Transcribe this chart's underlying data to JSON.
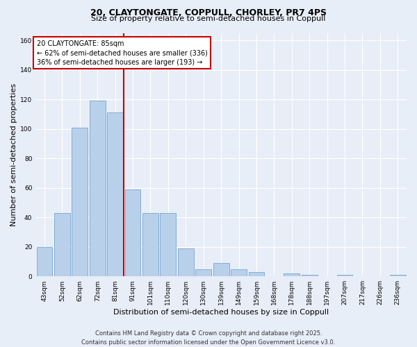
{
  "title_line1": "20, CLAYTONGATE, COPPULL, CHORLEY, PR7 4PS",
  "title_line2": "Size of property relative to semi-detached houses in Coppull",
  "xlabel": "Distribution of semi-detached houses by size in Coppull",
  "ylabel": "Number of semi-detached properties",
  "categories": [
    "43sqm",
    "52sqm",
    "62sqm",
    "72sqm",
    "81sqm",
    "91sqm",
    "101sqm",
    "110sqm",
    "120sqm",
    "130sqm",
    "139sqm",
    "149sqm",
    "159sqm",
    "168sqm",
    "178sqm",
    "188sqm",
    "197sqm",
    "207sqm",
    "217sqm",
    "226sqm",
    "236sqm"
  ],
  "values": [
    20,
    43,
    101,
    119,
    111,
    59,
    43,
    43,
    19,
    5,
    9,
    5,
    3,
    0,
    2,
    1,
    0,
    1,
    0,
    0,
    1
  ],
  "bar_color": "#b8d0ea",
  "bar_edge_color": "#6699cc",
  "reference_line_label": "20 CLAYTONGATE: 85sqm",
  "annotation_smaller": "← 62% of semi-detached houses are smaller (336)",
  "annotation_larger": "36% of semi-detached houses are larger (193) →",
  "annotation_box_color": "#ffffff",
  "annotation_box_edge": "#cc0000",
  "ref_line_color": "#cc0000",
  "ylim": [
    0,
    165
  ],
  "yticks": [
    0,
    20,
    40,
    60,
    80,
    100,
    120,
    140,
    160
  ],
  "background_color": "#e8eef8",
  "grid_color": "#ffffff",
  "footer_line1": "Contains HM Land Registry data © Crown copyright and database right 2025.",
  "footer_line2": "Contains public sector information licensed under the Open Government Licence v3.0.",
  "title_fontsize": 9,
  "subtitle_fontsize": 8,
  "axis_label_fontsize": 8,
  "tick_fontsize": 6.5,
  "annotation_fontsize": 7,
  "footer_fontsize": 6
}
